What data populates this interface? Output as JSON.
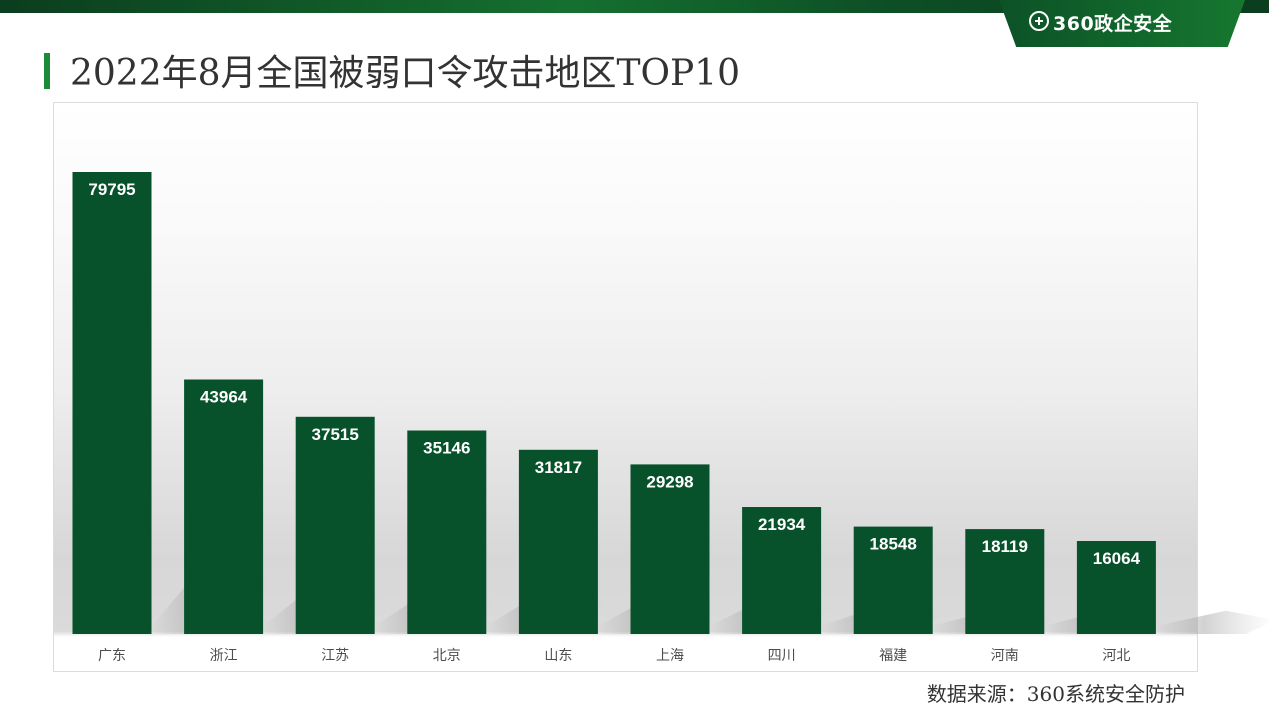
{
  "header": {
    "logo_text": "360政企安全",
    "logo_icon": "plus-circle-icon"
  },
  "page": {
    "title": "2022年8月全国被弱口令攻击地区TOP10",
    "source": "数据来源：360系统安全防护"
  },
  "colors": {
    "bar": "#07522a",
    "accent": "#1b8b3a"
  },
  "chart_data": {
    "type": "bar",
    "categories": [
      "广东",
      "浙江",
      "江苏",
      "北京",
      "山东",
      "上海",
      "四川",
      "福建",
      "河南",
      "河北"
    ],
    "values": [
      79795,
      43964,
      37515,
      35146,
      31817,
      29298,
      21934,
      18548,
      18119,
      16064
    ],
    "xlabel": "",
    "ylabel": "",
    "ylim": [
      0,
      79795
    ],
    "grid": false,
    "legend": "none"
  }
}
